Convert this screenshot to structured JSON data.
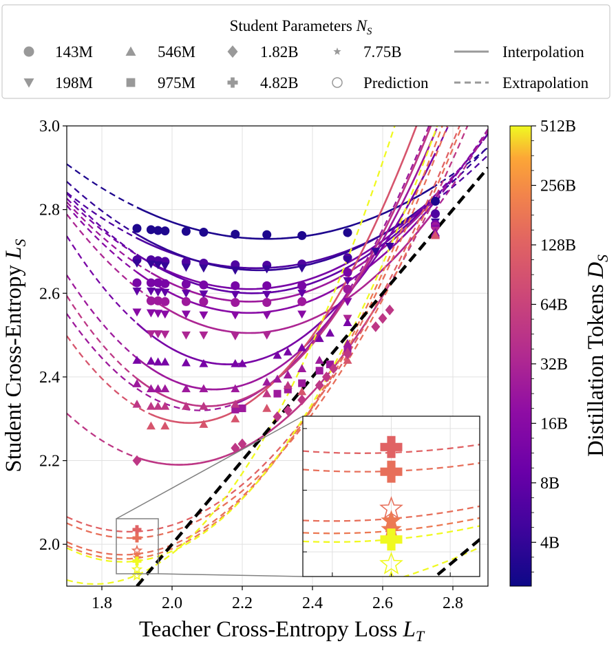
{
  "chart_data": {
    "type": "scatter",
    "title": "",
    "xlabel": "Teacher Cross-Entropy Loss",
    "xlabel_sub": "T",
    "xlabel_sym": "L",
    "ylabel": "Student Cross-Entropy",
    "ylabel_sym": "L",
    "ylabel_sub": "S",
    "xlim": [
      1.7,
      2.9
    ],
    "ylim": [
      1.9,
      3.0
    ],
    "xticks": [
      "1.8",
      "2.0",
      "2.2",
      "2.4",
      "2.6",
      "2.8"
    ],
    "xtick_values": [
      1.8,
      2.0,
      2.2,
      2.4,
      2.6,
      2.8
    ],
    "yticks": [
      "2.0",
      "2.2",
      "2.4",
      "2.6",
      "2.8",
      "3.0"
    ],
    "ytick_values": [
      2.0,
      2.2,
      2.4,
      2.6,
      2.8,
      3.0
    ],
    "grid": true,
    "legend": {
      "title": "Student Parameters",
      "title_sym": "N",
      "title_sub": "S",
      "placement": "top (above plot)",
      "entries": [
        {
          "marker": "circle",
          "label": "143M"
        },
        {
          "marker": "triangle-down",
          "label": "198M"
        },
        {
          "marker": "triangle-up",
          "label": "546M"
        },
        {
          "marker": "square",
          "label": "975M"
        },
        {
          "marker": "diamond",
          "label": "1.82B"
        },
        {
          "marker": "plus",
          "label": "4.82B"
        },
        {
          "marker": "star",
          "label": "7.75B"
        },
        {
          "marker": "open-circle",
          "label": "Prediction"
        },
        {
          "marker": "solid-line",
          "label": "Interpolation"
        },
        {
          "marker": "dashed-line",
          "label": "Extrapolation"
        }
      ]
    },
    "colorbar": {
      "label": "Distillation Tokens",
      "label_sym": "D",
      "label_sub": "S",
      "scale": "log2",
      "range_tokens_B": [
        2.4,
        512
      ],
      "ticks": [
        "4B",
        "8B",
        "16B",
        "32B",
        "64B",
        "128B",
        "256B",
        "512B"
      ],
      "tick_values_B": [
        4,
        8,
        16,
        32,
        64,
        128,
        256,
        512
      ],
      "colormap": "plasma"
    },
    "reference_line": {
      "label": "L_S = L_T",
      "style": "black dashed",
      "points": [
        [
          1.9,
          1.9
        ],
        [
          2.9,
          2.9
        ]
      ]
    },
    "series": [
      {
        "name": "143M @ ~3B",
        "marker": "circle",
        "tokens_B": 3,
        "curve": {
          "a": 2.73,
          "b": 0.55,
          "xmin": 2.27
        },
        "points": [
          [
            1.9,
            2.755
          ],
          [
            1.94,
            2.752
          ],
          [
            1.96,
            2.75
          ],
          [
            1.98,
            2.749
          ],
          [
            2.04,
            2.748
          ],
          [
            2.09,
            2.746
          ],
          [
            2.18,
            2.741
          ],
          [
            2.27,
            2.74
          ],
          [
            2.37,
            2.738
          ],
          [
            2.5,
            2.745
          ],
          [
            2.75,
            2.82
          ]
        ]
      },
      {
        "name": "143M @ ~6B",
        "marker": "circle",
        "tokens_B": 6,
        "curve": {
          "a": 2.66,
          "b": 0.62,
          "xmin": 2.24
        },
        "points": [
          [
            1.9,
            2.68
          ],
          [
            1.94,
            2.68
          ],
          [
            1.96,
            2.678
          ],
          [
            1.98,
            2.676
          ],
          [
            2.04,
            2.675
          ],
          [
            2.09,
            2.672
          ],
          [
            2.18,
            2.668
          ],
          [
            2.27,
            2.667
          ],
          [
            2.37,
            2.67
          ],
          [
            2.5,
            2.685
          ],
          [
            2.75,
            2.79
          ]
        ]
      },
      {
        "name": "198M @ ~4B",
        "marker": "triangle-down",
        "tokens_B": 4,
        "curve": {
          "a": 2.655,
          "b": 0.7,
          "xmin": 2.25
        },
        "points": [
          [
            1.9,
            2.672
          ],
          [
            1.94,
            2.67
          ],
          [
            1.96,
            2.668
          ],
          [
            1.98,
            2.665
          ],
          [
            2.04,
            2.662
          ],
          [
            2.09,
            2.66
          ],
          [
            2.18,
            2.655
          ],
          [
            2.27,
            2.658
          ],
          [
            2.37,
            2.66
          ],
          [
            2.5,
            2.68
          ],
          [
            2.58,
            2.7
          ],
          [
            2.62,
            2.712
          ],
          [
            2.75,
            2.77
          ]
        ]
      },
      {
        "name": "143M @ ~12B",
        "marker": "circle",
        "tokens_B": 12,
        "curve": {
          "a": 2.61,
          "b": 0.8,
          "xmin": 2.22
        },
        "points": [
          [
            1.9,
            2.625
          ],
          [
            1.94,
            2.625
          ],
          [
            1.96,
            2.625
          ],
          [
            1.98,
            2.623
          ],
          [
            2.04,
            2.622
          ],
          [
            2.09,
            2.62
          ],
          [
            2.18,
            2.618
          ],
          [
            2.27,
            2.618
          ],
          [
            2.37,
            2.618
          ],
          [
            2.5,
            2.65
          ],
          [
            2.75,
            2.765
          ]
        ]
      },
      {
        "name": "198M @ ~8B",
        "marker": "triangle-down",
        "tokens_B": 8,
        "curve": {
          "a": 2.6,
          "b": 0.85,
          "xmin": 2.23
        },
        "points": [
          [
            1.9,
            2.605
          ],
          [
            1.94,
            2.605
          ],
          [
            1.96,
            2.603
          ],
          [
            1.98,
            2.602
          ],
          [
            2.04,
            2.6
          ],
          [
            2.09,
            2.598
          ],
          [
            2.18,
            2.597
          ],
          [
            2.27,
            2.597
          ],
          [
            2.37,
            2.6
          ],
          [
            2.5,
            2.63
          ],
          [
            2.75,
            2.76
          ]
        ]
      },
      {
        "name": "143M @ ~24B",
        "marker": "circle",
        "tokens_B": 24,
        "curve": {
          "a": 2.58,
          "b": 0.88,
          "xmin": 2.22
        },
        "points": [
          [
            1.94,
            2.582
          ],
          [
            1.96,
            2.582
          ],
          [
            1.98,
            2.58
          ],
          [
            2.04,
            2.58
          ],
          [
            2.09,
            2.58
          ],
          [
            2.18,
            2.578
          ],
          [
            2.27,
            2.578
          ],
          [
            2.37,
            2.58
          ],
          [
            2.5,
            2.61
          ],
          [
            2.75,
            2.76
          ]
        ]
      },
      {
        "name": "198M @ ~16B",
        "marker": "triangle-down",
        "tokens_B": 16,
        "curve": {
          "a": 2.553,
          "b": 0.95,
          "xmin": 2.22
        },
        "points": [
          [
            1.9,
            2.555
          ],
          [
            1.94,
            2.553
          ],
          [
            1.96,
            2.552
          ],
          [
            1.98,
            2.55
          ],
          [
            2.04,
            2.55
          ],
          [
            2.09,
            2.548
          ],
          [
            2.18,
            2.548
          ],
          [
            2.27,
            2.548
          ],
          [
            2.37,
            2.55
          ],
          [
            2.5,
            2.58
          ],
          [
            2.75,
            2.755
          ]
        ]
      },
      {
        "name": "198M @ ~32B",
        "marker": "triangle-down",
        "tokens_B": 32,
        "curve": {
          "a": 2.505,
          "b": 1.05,
          "xmin": 2.22
        },
        "points": [
          [
            1.94,
            2.503
          ],
          [
            1.96,
            2.503
          ],
          [
            1.98,
            2.502
          ],
          [
            2.04,
            2.5
          ],
          [
            2.09,
            2.5
          ],
          [
            2.18,
            2.498
          ],
          [
            2.27,
            2.5
          ],
          [
            2.5,
            2.54
          ],
          [
            2.75,
            2.75
          ]
        ]
      },
      {
        "name": "546M @ ~12B",
        "marker": "triangle-up",
        "tokens_B": 12,
        "curve": {
          "a": 2.43,
          "b": 1.45,
          "xmin": 2.16
        },
        "points": [
          [
            1.9,
            2.44
          ],
          [
            1.94,
            2.438
          ],
          [
            1.96,
            2.436
          ],
          [
            1.98,
            2.436
          ],
          [
            2.04,
            2.434
          ],
          [
            2.09,
            2.432
          ],
          [
            2.18,
            2.432
          ],
          [
            2.2,
            2.432
          ],
          [
            2.3,
            2.452
          ],
          [
            2.33,
            2.46
          ],
          [
            2.37,
            2.47
          ],
          [
            2.42,
            2.492
          ],
          [
            2.45,
            2.505
          ],
          [
            2.5,
            2.53
          ],
          [
            2.75,
            2.745
          ]
        ]
      },
      {
        "name": "546M @ ~24B",
        "marker": "triangle-up",
        "tokens_B": 24,
        "curve": {
          "a": 2.37,
          "b": 1.55,
          "xmin": 2.12
        },
        "points": [
          [
            1.9,
            2.384
          ],
          [
            1.94,
            2.372
          ],
          [
            1.96,
            2.372
          ],
          [
            1.98,
            2.372
          ],
          [
            2.04,
            2.372
          ],
          [
            2.09,
            2.372
          ],
          [
            2.18,
            2.372
          ],
          [
            2.27,
            2.388
          ],
          [
            2.3,
            2.395
          ],
          [
            2.33,
            2.405
          ],
          [
            2.37,
            2.42
          ],
          [
            2.42,
            2.44
          ],
          [
            2.5,
            2.48
          ],
          [
            2.75,
            2.742
          ]
        ]
      },
      {
        "name": "975M @ ~24B",
        "marker": "square",
        "tokens_B": 24,
        "curve": {
          "a": 2.32,
          "b": 1.6,
          "xmin": 2.08
        },
        "points": [
          [
            2.18,
            2.322
          ],
          [
            2.2,
            2.325
          ],
          [
            2.3,
            2.36
          ],
          [
            2.33,
            2.37
          ],
          [
            2.37,
            2.385
          ],
          [
            2.42,
            2.415
          ],
          [
            2.45,
            2.43
          ],
          [
            2.5,
            2.465
          ]
        ]
      },
      {
        "name": "546M @ ~48B",
        "marker": "triangle-up",
        "tokens_B": 48,
        "curve": {
          "a": 2.33,
          "b": 1.65,
          "xmin": 2.1
        },
        "points": [
          [
            1.9,
            2.335
          ],
          [
            1.94,
            2.33
          ],
          [
            1.96,
            2.33
          ],
          [
            1.98,
            2.33
          ],
          [
            2.04,
            2.33
          ],
          [
            2.09,
            2.33
          ],
          [
            2.18,
            2.335
          ],
          [
            2.27,
            2.36
          ],
          [
            2.33,
            2.38
          ],
          [
            2.5,
            2.46
          ],
          [
            2.75,
            2.74
          ]
        ]
      },
      {
        "name": "546M @ ~96B",
        "marker": "triangle-up",
        "tokens_B": 96,
        "curve": {
          "a": 2.29,
          "b": 1.7,
          "xmin": 2.05
        },
        "points": [
          [
            1.94,
            2.283
          ],
          [
            1.98,
            2.283
          ],
          [
            2.09,
            2.287
          ],
          [
            2.18,
            2.3
          ],
          [
            2.27,
            2.325
          ],
          [
            2.37,
            2.365
          ],
          [
            2.5,
            2.44
          ],
          [
            2.75,
            2.738
          ]
        ]
      },
      {
        "name": "1.82B @ ~48B",
        "marker": "diamond",
        "tokens_B": 48,
        "curve": {
          "a": 2.19,
          "b": 1.2,
          "xmin": 2.02
        },
        "points": [
          [
            1.9,
            2.2
          ],
          [
            2.18,
            2.23
          ],
          [
            2.2,
            2.24
          ],
          [
            2.3,
            2.305
          ],
          [
            2.33,
            2.32
          ],
          [
            2.37,
            2.345
          ],
          [
            2.42,
            2.38
          ],
          [
            2.44,
            2.4
          ],
          [
            2.46,
            2.42
          ],
          [
            2.5,
            2.455
          ],
          [
            2.58,
            2.52
          ],
          [
            2.6,
            2.54
          ],
          [
            2.62,
            2.56
          ]
        ]
      },
      {
        "name": "4.82B @ ~128B",
        "marker": "plus",
        "tokens_B": 128,
        "curve": {
          "a": 2.03,
          "b": 1.1,
          "xmin": 1.88
        },
        "points": [
          [
            1.9,
            2.035
          ]
        ]
      },
      {
        "name": "4.82B @ ~160B",
        "marker": "plus",
        "tokens_B": 160,
        "curve": {
          "a": 2.015,
          "b": 1.1,
          "xmin": 1.88
        },
        "points": [
          [
            1.9,
            2.015
          ]
        ]
      },
      {
        "name": "7.75B @ ~160B pred",
        "marker": "open-star",
        "tokens_B": 160,
        "curve": {
          "a": 1.975,
          "b": 1.2,
          "xmin": 1.86
        },
        "points": [
          [
            1.9,
            1.985
          ]
        ]
      },
      {
        "name": "7.75B @ ~192B",
        "marker": "star",
        "tokens_B": 192,
        "curve": {
          "a": 1.965,
          "b": 1.25,
          "xmin": 1.86
        },
        "points": [
          [
            1.9,
            1.975
          ],
          [
            1.9,
            1.968
          ]
        ]
      },
      {
        "name": "4.82B @ ~512B",
        "marker": "plus",
        "tokens_B": 512,
        "curve": {
          "a": 1.958,
          "b": 1.3,
          "xmin": 1.86
        },
        "points": [
          [
            1.9,
            1.96
          ]
        ]
      },
      {
        "name": "7.75B @ ~512B pred",
        "marker": "open-star",
        "tokens_B": 512,
        "curve": {
          "a": 1.905,
          "b": 1.5,
          "xmin": 1.78
        },
        "points": [
          [
            1.9,
            1.94
          ],
          [
            1.9,
            1.925
          ]
        ]
      }
    ],
    "inset": {
      "xlim": [
        1.84,
        1.96
      ],
      "ylim": [
        1.93,
        2.06
      ],
      "source_box": "zoom of lower-left region"
    }
  }
}
